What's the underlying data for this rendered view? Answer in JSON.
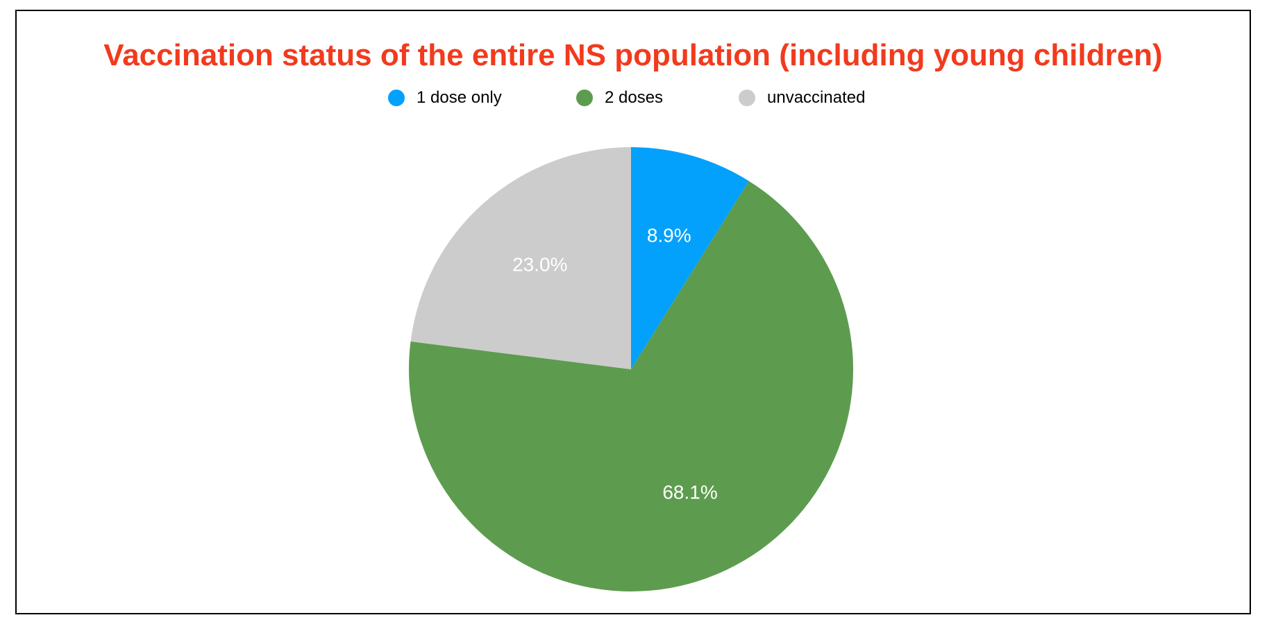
{
  "chart_data": {
    "type": "pie",
    "title": "Vaccination status of the entire NS population (including young children)",
    "categories": [
      "1 dose only",
      "2 doses",
      "unvaccinated"
    ],
    "values": [
      8.9,
      68.1,
      23.0
    ],
    "data_labels": [
      "8.9%",
      "68.1%",
      "23.0%"
    ],
    "colors": [
      "#03a1fc",
      "#5d9c4e",
      "#cccccc"
    ],
    "legend_position": "top",
    "start_angle": "12 o'clock",
    "direction": "clockwise"
  },
  "legend": {
    "items": [
      {
        "label": "1 dose only",
        "color": "#03a1fc"
      },
      {
        "label": "2 doses",
        "color": "#5d9c4e"
      },
      {
        "label": "unvaccinated",
        "color": "#cccccc"
      }
    ]
  }
}
